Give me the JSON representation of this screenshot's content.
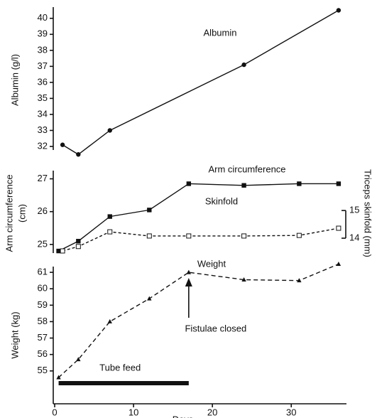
{
  "chart_data": [
    {
      "type": "line",
      "ylabel": [
        "Albumin  (g/l)"
      ],
      "annotation": "Albumin",
      "xlim": [
        0,
        37
      ],
      "ylim": [
        31.6,
        40.7
      ],
      "yticks": [
        32,
        33,
        34,
        35,
        36,
        37,
        38,
        39,
        40
      ],
      "series": [
        {
          "name": "Albumin",
          "color": "#111111",
          "marker": "circle",
          "linestyle": "solid",
          "x": [
            1,
            3,
            7,
            24,
            36
          ],
          "values": [
            32.1,
            31.5,
            33.0,
            37.1,
            40.5
          ]
        }
      ]
    },
    {
      "type": "line",
      "ylabel": [
        "Arm circumference",
        "(cm)"
      ],
      "y2label": "Triceps skinfold (mm)",
      "annotations": [
        "Arm circumference",
        "Skinfold"
      ],
      "xlim": [
        0,
        37
      ],
      "ylim": [
        24.65,
        27.25
      ],
      "yticks": [
        25,
        26,
        27
      ],
      "y2lim": [
        13.36,
        16.44
      ],
      "y2ticks": [
        14,
        15
      ],
      "series": [
        {
          "name": "Arm circumference",
          "color": "#111111",
          "marker": "square",
          "linestyle": "solid",
          "x": [
            0.5,
            3,
            7,
            12,
            17,
            24,
            31,
            36
          ],
          "values": [
            24.8,
            25.1,
            25.85,
            26.05,
            26.85,
            26.8,
            26.85,
            26.85
          ]
        },
        {
          "name": "Skinfold",
          "color": "#111111",
          "marker": "square-open",
          "linestyle": "dashed",
          "axis": "y2",
          "x": [
            1,
            3,
            7,
            12,
            17,
            24,
            31,
            36
          ],
          "values": [
            13.54,
            13.7,
            14.23,
            14.08,
            14.08,
            14.08,
            14.1,
            14.36
          ]
        }
      ]
    },
    {
      "type": "line",
      "ylabel": [
        "Weight  (kg)"
      ],
      "annotation": "Weight",
      "xlabel": "Days",
      "xlim": [
        0,
        37
      ],
      "xticks": [
        0,
        10,
        20,
        30
      ],
      "ylim": [
        53.0,
        61.35
      ],
      "yticks": [
        55,
        56,
        57,
        58,
        59,
        60,
        61
      ],
      "arrow": {
        "label": "Fistulae closed",
        "day": 17
      },
      "bar": {
        "label": "Tube feed",
        "days": [
          0.5,
          17
        ]
      },
      "series": [
        {
          "name": "Weight",
          "color": "#111111",
          "marker": "triangle",
          "linestyle": "dashed",
          "x": [
            0.5,
            3,
            7,
            12,
            17,
            24,
            31,
            36
          ],
          "values": [
            54.6,
            55.7,
            58.0,
            59.4,
            61.0,
            60.55,
            60.5,
            61.5
          ]
        }
      ]
    }
  ]
}
